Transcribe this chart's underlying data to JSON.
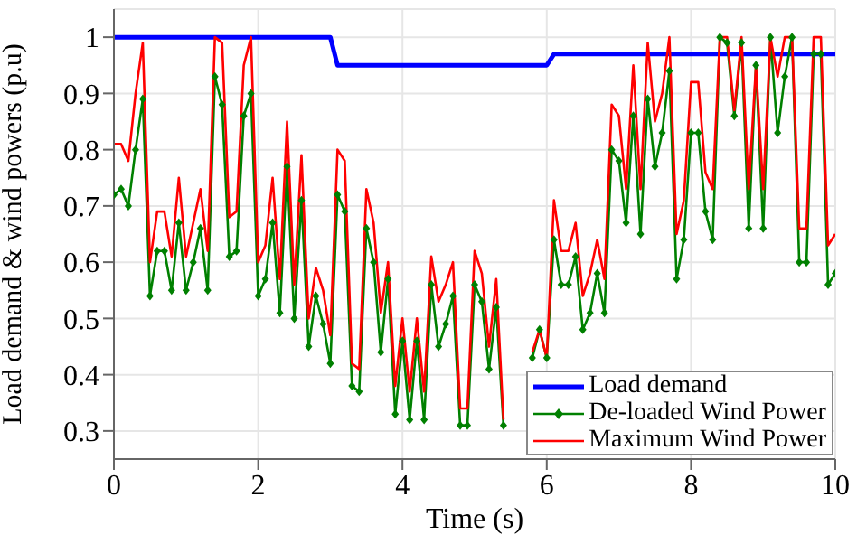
{
  "chart_data": {
    "type": "line",
    "xlabel": "Time (s)",
    "ylabel": "Load demand & wind powers (p.u)",
    "xlim": [
      0,
      10
    ],
    "xticks": [
      0,
      2,
      4,
      6,
      8,
      10
    ],
    "ylim": [
      0.25,
      1.05
    ],
    "yticks": [
      0.3,
      0.4,
      0.5,
      0.6,
      0.7,
      0.8,
      0.9,
      1
    ],
    "grid": true,
    "legend": "bottom right",
    "x": [
      0,
      0.1,
      0.2,
      0.3,
      0.4,
      0.5,
      0.6,
      0.7,
      0.8,
      0.9,
      1,
      1.1,
      1.2,
      1.3,
      1.4,
      1.5,
      1.6,
      1.7,
      1.8,
      1.9,
      2,
      2.1,
      2.2,
      2.3,
      2.4,
      2.5,
      2.6,
      2.7,
      2.8,
      2.9,
      3,
      3.1,
      3.2,
      3.3,
      3.4,
      3.5,
      3.6,
      3.7,
      3.8,
      3.9,
      4,
      4.1,
      4.2,
      4.3,
      4.4,
      4.5,
      4.6,
      4.7,
      4.8,
      4.9,
      5,
      5.1,
      5.2,
      5.3,
      5.4,
      5.6,
      5.8,
      5.9,
      6,
      6.1,
      6.2,
      6.3,
      6.4,
      6.5,
      6.6,
      6.7,
      6.8,
      6.9,
      7,
      7.1,
      7.2,
      7.3,
      7.4,
      7.5,
      7.6,
      7.7,
      7.8,
      7.9,
      8,
      8.1,
      8.2,
      8.3,
      8.4,
      8.5,
      8.6,
      8.7,
      8.8,
      8.9,
      9,
      9.1,
      9.2,
      9.3,
      9.4,
      9.5,
      9.6,
      9.7,
      9.8,
      9.9,
      10
    ],
    "series": [
      {
        "name": "Load demand",
        "color": "#0000ff",
        "marker": "none",
        "x": [
          0,
          3,
          3.1,
          6,
          6.1,
          10
        ],
        "values": [
          1,
          1,
          0.95,
          0.95,
          0.97,
          0.97
        ]
      },
      {
        "name": "De-loaded Wind Power",
        "color": "#008000",
        "marker": "diamond",
        "values": [
          0.72,
          0.73,
          0.7,
          0.8,
          0.89,
          0.54,
          0.62,
          0.62,
          0.55,
          0.67,
          0.55,
          0.6,
          0.66,
          0.55,
          0.93,
          0.88,
          0.61,
          0.62,
          0.86,
          0.9,
          0.54,
          0.57,
          0.67,
          0.51,
          0.77,
          0.5,
          0.71,
          0.45,
          0.54,
          0.49,
          0.42,
          0.72,
          0.69,
          0.38,
          0.37,
          0.66,
          0.6,
          0.44,
          0.57,
          0.33,
          0.46,
          0.32,
          0.46,
          0.32,
          0.56,
          0.45,
          0.49,
          0.54,
          0.31,
          0.31,
          0.56,
          0.53,
          0.41,
          0.52,
          0.31,
          null,
          0.43,
          0.48,
          0.43,
          0.64,
          0.56,
          0.56,
          0.61,
          0.48,
          0.51,
          0.58,
          0.51,
          0.8,
          0.78,
          0.67,
          0.86,
          0.65,
          0.89,
          0.77,
          0.83,
          0.94,
          0.57,
          0.64,
          0.83,
          0.83,
          0.69,
          0.64,
          1.0,
          0.99,
          0.86,
          0.99,
          0.66,
          0.95,
          0.66,
          1.0,
          0.83,
          0.93,
          1.0,
          0.6,
          0.6,
          0.97,
          0.97,
          0.56,
          0.58
        ]
      },
      {
        "name": "Maximum Wind Power",
        "color": "#ff0000",
        "marker": "none",
        "values": [
          0.81,
          0.81,
          0.78,
          0.9,
          0.99,
          0.6,
          0.69,
          0.69,
          0.61,
          0.75,
          0.61,
          0.67,
          0.73,
          0.62,
          1.0,
          0.99,
          0.68,
          0.69,
          0.95,
          1.0,
          0.6,
          0.63,
          0.75,
          0.57,
          0.85,
          0.56,
          0.79,
          0.5,
          0.59,
          0.55,
          0.47,
          0.8,
          0.78,
          0.42,
          0.41,
          0.73,
          0.67,
          0.51,
          0.6,
          0.38,
          0.5,
          0.37,
          0.5,
          0.37,
          0.61,
          0.53,
          0.56,
          0.6,
          0.34,
          0.34,
          0.62,
          0.58,
          0.45,
          0.57,
          0.32,
          null,
          0.44,
          0.48,
          0.43,
          0.71,
          0.62,
          0.62,
          0.67,
          0.54,
          0.58,
          0.64,
          0.57,
          0.88,
          0.86,
          0.73,
          0.95,
          0.73,
          0.99,
          0.85,
          0.9,
          1.0,
          0.65,
          0.71,
          0.92,
          0.92,
          0.76,
          0.73,
          1.0,
          1.0,
          0.87,
          1.0,
          0.73,
          0.95,
          0.73,
          1.0,
          0.93,
          1.0,
          1.0,
          0.66,
          0.66,
          1.0,
          1.0,
          0.63,
          0.65
        ]
      }
    ]
  }
}
